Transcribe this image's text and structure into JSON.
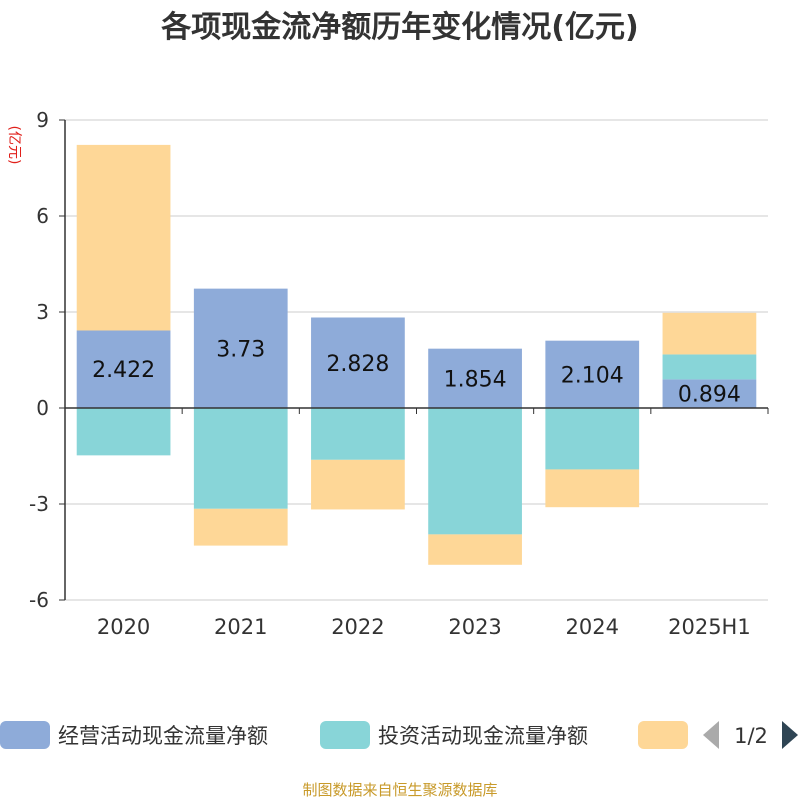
{
  "chart_data": {
    "type": "bar",
    "stacked": true,
    "title": "各项现金流净额历年变化情况(亿元)",
    "ylabel": "(亿元)",
    "categories": [
      "2020",
      "2021",
      "2022",
      "2023",
      "2024",
      "2025H1"
    ],
    "ylim": [
      -6,
      9
    ],
    "yticks": [
      -6,
      -3,
      0,
      3,
      6,
      9
    ],
    "grid": true,
    "series": [
      {
        "name": "经营活动现金流量净额",
        "color": "#8eabd9",
        "values": [
          2.422,
          3.73,
          2.828,
          1.854,
          2.104,
          0.894
        ],
        "labels": [
          "2.422",
          "3.73",
          "2.828",
          "1.854",
          "2.104",
          "0.894"
        ]
      },
      {
        "name": "投资活动现金流量净额",
        "color": "#88d5d8",
        "values": [
          -1.48,
          -3.15,
          -1.62,
          -3.95,
          -1.92,
          0.78
        ]
      },
      {
        "name": "",
        "color": "#fed797",
        "values": [
          5.8,
          -1.15,
          -1.55,
          -0.95,
          -1.18,
          1.3
        ]
      }
    ],
    "legend": {
      "position": "bottom",
      "page": "1/2"
    },
    "source": "制图数据来自恒生聚源数据库"
  }
}
